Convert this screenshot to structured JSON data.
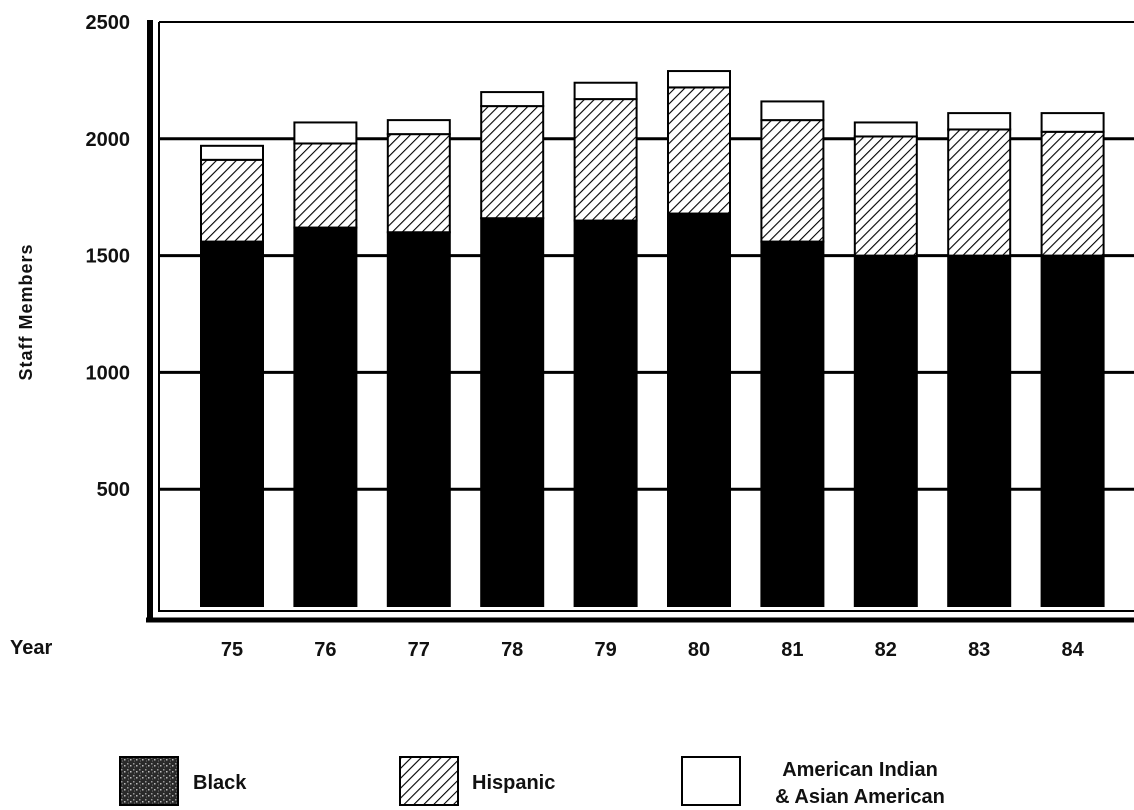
{
  "chart_data": {
    "type": "bar",
    "stacked": true,
    "title": "",
    "xlabel": "Year",
    "ylabel": "Staff Members",
    "ylim": [
      0,
      2500
    ],
    "yticks": [
      500,
      1000,
      1500,
      2000,
      2500
    ],
    "categories": [
      "75",
      "76",
      "77",
      "78",
      "79",
      "80",
      "81",
      "82",
      "83",
      "84"
    ],
    "grid": true,
    "legend_position": "bottom",
    "series": [
      {
        "name": "Black",
        "pattern": "solid",
        "color": "#000000",
        "values": [
          1560,
          1620,
          1600,
          1660,
          1650,
          1680,
          1560,
          1500,
          1500,
          1500
        ]
      },
      {
        "name": "Hispanic",
        "pattern": "hatch",
        "color": "#ffffff",
        "values": [
          350,
          360,
          420,
          480,
          520,
          540,
          520,
          510,
          540,
          530
        ]
      },
      {
        "name": "American Indian & Asian American",
        "legend_lines": [
          "American Indian",
          "& Asian American"
        ],
        "pattern": "white",
        "color": "#ffffff",
        "values": [
          60,
          90,
          60,
          60,
          70,
          70,
          80,
          60,
          70,
          80
        ]
      }
    ]
  }
}
